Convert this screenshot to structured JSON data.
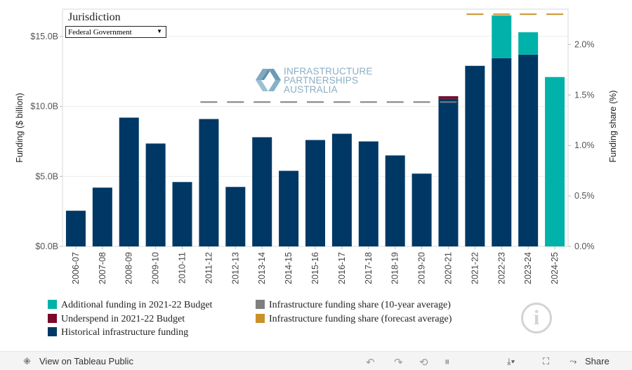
{
  "filter": {
    "title": "Jurisdiction",
    "selected": "Federal Government"
  },
  "logo": {
    "line1": "INFRASTRUCTURE",
    "line2": "PARTNERSHIPS",
    "line3": "AUSTRALIA"
  },
  "chart_data": {
    "type": "bar",
    "title": "",
    "xlabel": "",
    "ylabel": "Funding ($ billion)",
    "y2label": "Funding share (%)",
    "ylim": [
      0,
      16.95
    ],
    "y2lim": [
      0,
      2.35
    ],
    "yticks": [
      {
        "value": 0,
        "label": "$0.0B"
      },
      {
        "value": 5,
        "label": "$5.0B"
      },
      {
        "value": 10,
        "label": "$10.0B"
      },
      {
        "value": 15,
        "label": "$15.0B"
      }
    ],
    "y2ticks": [
      {
        "value": 0,
        "label": "0.0%"
      },
      {
        "value": 0.5,
        "label": "0.5%"
      },
      {
        "value": 1.0,
        "label": "1.0%"
      },
      {
        "value": 1.5,
        "label": "1.5%"
      },
      {
        "value": 2.0,
        "label": "2.0%"
      }
    ],
    "categories": [
      "2006-07",
      "2007-08",
      "2008-09",
      "2009-10",
      "2010-11",
      "2011-12",
      "2012-13",
      "2013-14",
      "2014-15",
      "2015-16",
      "2016-17",
      "2017-18",
      "2018-19",
      "2019-20",
      "2020-21",
      "2021-22",
      "2022-23",
      "2023-24",
      "2024-25"
    ],
    "series": [
      {
        "name": "Historical infrastructure funding",
        "color": "#003865",
        "values": [
          2.55,
          4.2,
          9.2,
          7.35,
          4.6,
          9.1,
          4.25,
          7.8,
          5.4,
          7.6,
          8.05,
          7.5,
          6.5,
          5.2,
          10.55,
          12.9,
          13.45,
          13.7,
          0
        ]
      },
      {
        "name": "Underspend in 2021-22 Budget",
        "color": "#7b0a2a",
        "values": [
          0,
          0,
          0,
          0,
          0,
          0,
          0,
          0,
          0,
          0,
          0,
          0,
          0,
          0,
          0.18,
          0,
          0,
          0,
          0
        ]
      },
      {
        "name": "Additional funding in 2021-22 Budget",
        "color": "#00b2a9",
        "values": [
          0,
          0,
          0,
          0,
          0,
          0,
          0,
          0,
          0,
          0,
          0,
          0,
          0,
          0,
          0,
          0,
          3.05,
          1.6,
          12.1
        ]
      }
    ],
    "lines": [
      {
        "name": "Infrastructure funding share (10-year average)",
        "color": "#7f7f7f",
        "axis": "y2",
        "values": [
          null,
          null,
          null,
          null,
          null,
          1.43,
          1.43,
          1.43,
          1.43,
          1.43,
          1.43,
          1.43,
          1.43,
          1.43,
          1.43,
          null,
          null,
          null,
          null
        ]
      },
      {
        "name": "Infrastructure funding share (forecast average)",
        "color": "#c8922a",
        "axis": "y2",
        "values": [
          null,
          null,
          null,
          null,
          null,
          null,
          null,
          null,
          null,
          null,
          null,
          null,
          null,
          null,
          null,
          2.3,
          2.3,
          2.3,
          2.3
        ]
      }
    ]
  },
  "legend": {
    "col1": [
      {
        "label": "Additional funding in 2021-22 Budget",
        "color": "#00b2a9"
      },
      {
        "label": "Underspend in 2021-22 Budget",
        "color": "#7b0a2a"
      },
      {
        "label": "Historical infrastructure funding",
        "color": "#003865"
      }
    ],
    "col2": [
      {
        "label": "Infrastructure funding share (10-year average)",
        "color": "#7f7f7f"
      },
      {
        "label": "Infrastructure funding share (forecast average)",
        "color": "#c8922a"
      }
    ]
  },
  "toolbar": {
    "view_label": "View on Tableau Public",
    "share_label": "Share"
  }
}
